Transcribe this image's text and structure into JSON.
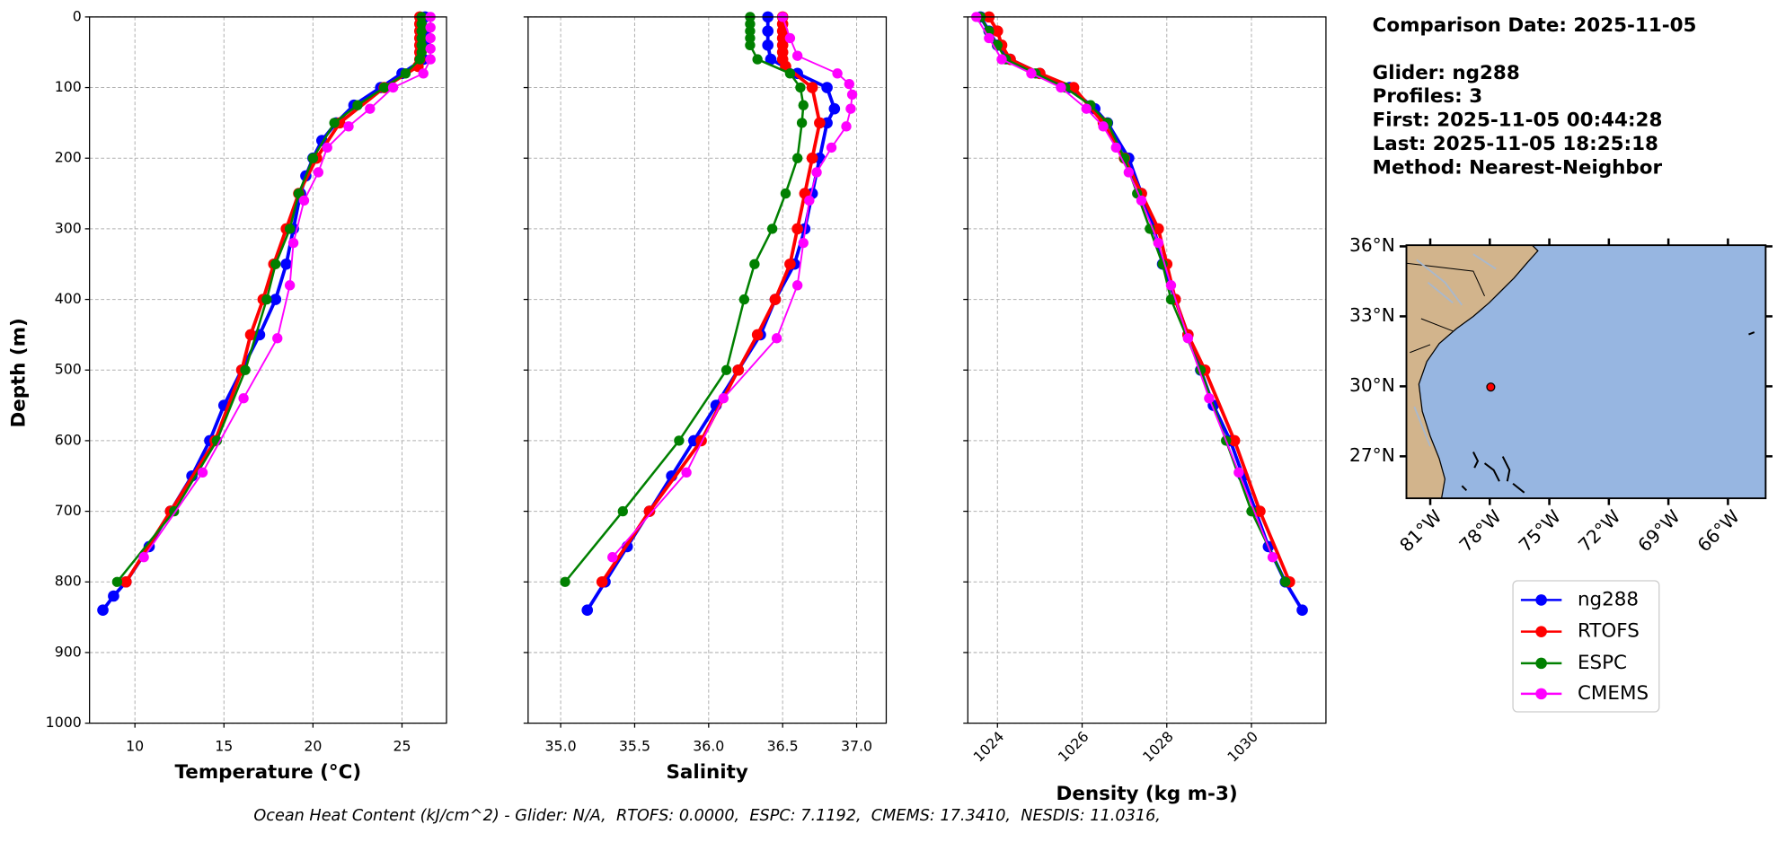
{
  "header": {
    "lines": [
      "Comparison Date: 2025-11-05",
      "Glider: ng288",
      "Profiles: 3",
      "First: 2025-11-05 00:44:28",
      "Last: 2025-11-05 18:25:18",
      "Method: Nearest-Neighbor"
    ]
  },
  "footer": "Ocean Heat Content (kJ/cm^2) - Glider: N/A,  RTOFS: 0.0000,  ESPC: 7.1192,  CMEMS: 17.3410,  NESDIS: 11.0316,",
  "chart_data": [
    {
      "type": "profile",
      "x_label": "Temperature (°C)",
      "y_label": "Depth (m)",
      "xlim": [
        7.45,
        27.5
      ],
      "xticks": [
        10,
        15,
        20,
        25
      ],
      "ylim": [
        1000,
        0
      ],
      "yticks": [
        0,
        100,
        200,
        300,
        400,
        500,
        600,
        700,
        800,
        900,
        1000
      ],
      "grid": true,
      "series": [
        {
          "name": "ng288",
          "color": "#0000ff",
          "y": [
            0,
            20,
            40,
            60,
            80,
            100,
            125,
            150,
            175,
            200,
            225,
            250,
            300,
            350,
            400,
            450,
            500,
            550,
            600,
            650,
            700,
            750,
            800,
            820,
            840
          ],
          "x": [
            26.3,
            26.3,
            26.3,
            26.2,
            25.0,
            23.8,
            22.3,
            21.3,
            20.5,
            20.0,
            19.6,
            19.3,
            18.9,
            18.5,
            17.9,
            17.0,
            16.0,
            15.0,
            14.2,
            13.2,
            12.0,
            10.8,
            9.5,
            8.8,
            8.2
          ]
        },
        {
          "name": "RTOFS",
          "color": "#ff0000",
          "y": [
            0,
            10,
            20,
            30,
            40,
            50,
            60,
            70,
            100,
            150,
            200,
            250,
            300,
            350,
            400,
            450,
            500,
            600,
            700,
            800
          ],
          "x": [
            26.0,
            26.0,
            26.0,
            26.0,
            26.0,
            26.0,
            26.0,
            25.9,
            24.0,
            21.5,
            20.2,
            19.2,
            18.5,
            17.8,
            17.2,
            16.5,
            16.0,
            14.5,
            12.0,
            9.5
          ]
        },
        {
          "name": "ESPC",
          "color": "#008000",
          "y": [
            0,
            10,
            20,
            30,
            40,
            50,
            60,
            80,
            100,
            125,
            150,
            200,
            250,
            300,
            350,
            400,
            500,
            600,
            700,
            800
          ],
          "x": [
            26.1,
            26.1,
            26.1,
            26.1,
            26.1,
            26.1,
            26.0,
            25.2,
            24.0,
            22.5,
            21.2,
            20.0,
            19.2,
            18.7,
            17.9,
            17.4,
            16.2,
            14.6,
            12.2,
            9.0
          ]
        },
        {
          "name": "CMEMS",
          "color": "#ff00ff",
          "y": [
            0,
            15,
            30,
            45,
            60,
            80,
            100,
            130,
            155,
            185,
            220,
            260,
            320,
            380,
            455,
            540,
            645,
            765
          ],
          "x": [
            26.6,
            26.6,
            26.6,
            26.6,
            26.6,
            26.2,
            24.5,
            23.2,
            22.0,
            20.8,
            20.3,
            19.5,
            18.9,
            18.7,
            18.0,
            16.1,
            13.8,
            10.5
          ]
        }
      ]
    },
    {
      "type": "profile",
      "x_label": "Salinity",
      "sharey": 0,
      "xlim": [
        34.78,
        37.2
      ],
      "xticks": [
        {
          "value": 35,
          "label": "35.0"
        },
        35.5,
        {
          "value": 36,
          "label": "36.0"
        },
        36.5,
        {
          "value": 37,
          "label": "37.0"
        }
      ],
      "ylim": [
        1000,
        0
      ],
      "grid": true,
      "series": [
        {
          "name": "ng288",
          "color": "#0000ff",
          "y": [
            0,
            20,
            40,
            60,
            80,
            100,
            130,
            150,
            200,
            250,
            300,
            350,
            400,
            450,
            500,
            550,
            600,
            650,
            700,
            750,
            800,
            840
          ],
          "x": [
            36.4,
            36.4,
            36.4,
            36.42,
            36.6,
            36.8,
            36.85,
            36.8,
            36.75,
            36.7,
            36.65,
            36.58,
            36.45,
            36.35,
            36.2,
            36.05,
            35.9,
            35.75,
            35.6,
            35.45,
            35.3,
            35.18
          ]
        },
        {
          "name": "RTOFS",
          "color": "#ff0000",
          "y": [
            0,
            10,
            20,
            30,
            40,
            50,
            60,
            70,
            100,
            150,
            200,
            250,
            300,
            350,
            400,
            450,
            500,
            600,
            700,
            800
          ],
          "x": [
            36.5,
            36.5,
            36.5,
            36.5,
            36.5,
            36.5,
            36.5,
            36.52,
            36.7,
            36.75,
            36.7,
            36.65,
            36.6,
            36.55,
            36.45,
            36.33,
            36.2,
            35.95,
            35.6,
            35.28
          ]
        },
        {
          "name": "ESPC",
          "color": "#008000",
          "y": [
            0,
            10,
            20,
            30,
            40,
            60,
            80,
            100,
            125,
            150,
            200,
            250,
            300,
            350,
            400,
            500,
            600,
            700,
            800
          ],
          "x": [
            36.28,
            36.28,
            36.28,
            36.28,
            36.28,
            36.33,
            36.55,
            36.62,
            36.64,
            36.63,
            36.6,
            36.52,
            36.43,
            36.31,
            36.24,
            36.12,
            35.8,
            35.42,
            35.03
          ]
        },
        {
          "name": "CMEMS",
          "color": "#ff00ff",
          "y": [
            0,
            30,
            55,
            80,
            95,
            110,
            130,
            155,
            185,
            220,
            260,
            320,
            380,
            455,
            540,
            645,
            765
          ],
          "x": [
            36.5,
            36.55,
            36.6,
            36.87,
            36.95,
            36.97,
            36.96,
            36.93,
            36.83,
            36.73,
            36.68,
            36.64,
            36.6,
            36.46,
            36.1,
            35.85,
            35.35
          ]
        }
      ]
    },
    {
      "type": "profile",
      "x_label": "Density (kg m-3)",
      "sharey": 0,
      "xtick_rotation": 45,
      "xlim": [
        1023.3,
        1031.76
      ],
      "xticks": [
        1024,
        1026,
        1028,
        1030
      ],
      "ylim": [
        1000,
        0
      ],
      "grid": true,
      "series": [
        {
          "name": "ng288",
          "color": "#0000ff",
          "y": [
            0,
            20,
            40,
            60,
            80,
            100,
            130,
            150,
            200,
            250,
            300,
            350,
            400,
            450,
            500,
            550,
            600,
            650,
            700,
            750,
            800,
            840
          ],
          "x": [
            1023.6,
            1023.8,
            1024.0,
            1024.3,
            1025.0,
            1025.7,
            1026.3,
            1026.6,
            1027.1,
            1027.4,
            1027.7,
            1027.9,
            1028.2,
            1028.5,
            1028.8,
            1029.1,
            1029.5,
            1029.8,
            1030.1,
            1030.4,
            1030.8,
            1031.2
          ]
        },
        {
          "name": "RTOFS",
          "color": "#ff0000",
          "y": [
            0,
            20,
            40,
            60,
            80,
            100,
            150,
            200,
            250,
            300,
            350,
            400,
            450,
            500,
            600,
            700,
            800
          ],
          "x": [
            1023.8,
            1024.0,
            1024.1,
            1024.3,
            1025.0,
            1025.8,
            1026.5,
            1027.0,
            1027.4,
            1027.8,
            1028.0,
            1028.2,
            1028.5,
            1028.9,
            1029.6,
            1030.2,
            1030.9
          ]
        },
        {
          "name": "ESPC",
          "color": "#008000",
          "y": [
            0,
            20,
            40,
            60,
            80,
            100,
            125,
            150,
            200,
            250,
            300,
            350,
            400,
            500,
            600,
            700,
            800
          ],
          "x": [
            1023.6,
            1023.8,
            1024.0,
            1024.2,
            1024.9,
            1025.6,
            1026.2,
            1026.6,
            1027.0,
            1027.3,
            1027.6,
            1027.9,
            1028.1,
            1028.8,
            1029.4,
            1030.0,
            1030.8
          ]
        },
        {
          "name": "CMEMS",
          "color": "#ff00ff",
          "y": [
            0,
            30,
            60,
            80,
            100,
            130,
            155,
            185,
            220,
            260,
            320,
            380,
            455,
            540,
            645,
            765
          ],
          "x": [
            1023.5,
            1023.8,
            1024.1,
            1024.8,
            1025.5,
            1026.1,
            1026.5,
            1026.8,
            1027.1,
            1027.4,
            1027.8,
            1028.1,
            1028.5,
            1029.0,
            1029.7,
            1030.5
          ]
        }
      ]
    },
    {
      "type": "map",
      "xlim": [
        -82.2,
        -64.1
      ],
      "ylim": [
        25.2,
        36.05
      ],
      "xtick_rotation": 45,
      "xticks": [
        {
          "value": -81,
          "label": "81°W"
        },
        {
          "value": -78,
          "label": "78°W"
        },
        {
          "value": -75,
          "label": "75°W"
        },
        {
          "value": -72,
          "label": "72°W"
        },
        {
          "value": -69,
          "label": "69°W"
        },
        {
          "value": -66,
          "label": "66°W"
        }
      ],
      "yticks": [
        {
          "value": 36,
          "label": "36°N"
        },
        {
          "value": 33,
          "label": "33°N"
        },
        {
          "value": 30,
          "label": "30°N"
        },
        {
          "value": 27,
          "label": "27°N"
        }
      ],
      "points": {
        "x": [
          -77.95
        ],
        "y": [
          29.97
        ],
        "color": "#ff0000"
      }
    }
  ]
}
